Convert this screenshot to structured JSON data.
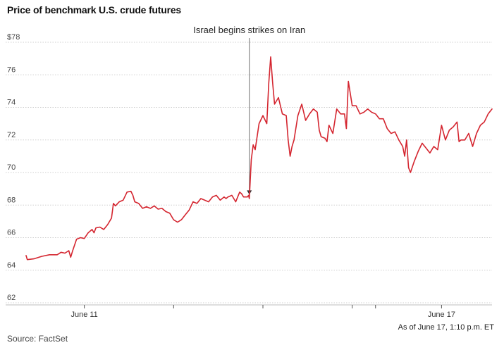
{
  "chart_data": {
    "type": "line",
    "title": "Price of benchmark U.S. crude futures",
    "source": "Source: FactSet",
    "as_of": "As of June 17, 1:10 p.m. ET",
    "y_ticks": [
      "$78",
      "76",
      "74",
      "72",
      "70",
      "68",
      "66",
      "64",
      "62"
    ],
    "y_tick_values": [
      78,
      76,
      74,
      72,
      70,
      68,
      66,
      64,
      62
    ],
    "ylim": [
      62,
      78
    ],
    "grid": true,
    "x_axis": {
      "unit": "trading hours since start of June 10",
      "range": [
        0,
        120
      ]
    },
    "x_ticks": [
      {
        "x": 15,
        "label": "June 11"
      },
      {
        "x": 38,
        "label": ""
      },
      {
        "x": 61,
        "label": ""
      },
      {
        "x": 84,
        "label": ""
      },
      {
        "x": 90,
        "label": ""
      },
      {
        "x": 107,
        "label": "June 17"
      }
    ],
    "annotation": {
      "label": "Israel begins strikes on Iran",
      "x": 57.5,
      "y": 68.6
    },
    "line_color": "#d4252f",
    "series": [
      {
        "values": [
          [
            0,
            64.9
          ],
          [
            0.3,
            64.65
          ],
          [
            2,
            64.7
          ],
          [
            4,
            64.85
          ],
          [
            6,
            64.95
          ],
          [
            8,
            64.95
          ],
          [
            9,
            65.1
          ],
          [
            10,
            65.05
          ],
          [
            11,
            65.2
          ],
          [
            11.5,
            64.8
          ],
          [
            12,
            65.2
          ],
          [
            13,
            65.9
          ],
          [
            14,
            66.0
          ],
          [
            15,
            65.95
          ],
          [
            16,
            66.3
          ],
          [
            17,
            66.5
          ],
          [
            17.5,
            66.3
          ],
          [
            18,
            66.6
          ],
          [
            19,
            66.65
          ],
          [
            20,
            66.5
          ],
          [
            21,
            66.8
          ],
          [
            22,
            67.2
          ],
          [
            22.5,
            68.1
          ],
          [
            23,
            67.95
          ],
          [
            24,
            68.2
          ],
          [
            25,
            68.3
          ],
          [
            26,
            68.8
          ],
          [
            27,
            68.85
          ],
          [
            27.5,
            68.6
          ],
          [
            28,
            68.2
          ],
          [
            29,
            68.1
          ],
          [
            30,
            67.8
          ],
          [
            31,
            67.9
          ],
          [
            32,
            67.8
          ],
          [
            33,
            67.95
          ],
          [
            34,
            67.75
          ],
          [
            35,
            67.8
          ],
          [
            36,
            67.6
          ],
          [
            37,
            67.5
          ],
          [
            38,
            67.1
          ],
          [
            39,
            66.95
          ],
          [
            40,
            67.1
          ],
          [
            41,
            67.4
          ],
          [
            42,
            67.7
          ],
          [
            43,
            68.2
          ],
          [
            44,
            68.1
          ],
          [
            45,
            68.4
          ],
          [
            46,
            68.3
          ],
          [
            47,
            68.2
          ],
          [
            48,
            68.5
          ],
          [
            49,
            68.6
          ],
          [
            50,
            68.3
          ],
          [
            51,
            68.5
          ],
          [
            51.5,
            68.4
          ],
          [
            52,
            68.5
          ],
          [
            53,
            68.6
          ],
          [
            54,
            68.2
          ],
          [
            55,
            68.8
          ],
          [
            55.5,
            68.7
          ],
          [
            56,
            68.5
          ],
          [
            57,
            68.5
          ],
          [
            57.3,
            68.6
          ],
          [
            57.5,
            68.4
          ],
          [
            58,
            70.8
          ],
          [
            58.5,
            71.7
          ],
          [
            59,
            71.4
          ],
          [
            60,
            73.0
          ],
          [
            61,
            73.5
          ],
          [
            62,
            73.0
          ],
          [
            62.5,
            75.5
          ],
          [
            63,
            77.1
          ],
          [
            63.5,
            75.5
          ],
          [
            64,
            74.2
          ],
          [
            65,
            74.6
          ],
          [
            66,
            73.6
          ],
          [
            67,
            73.5
          ],
          [
            67.5,
            72.0
          ],
          [
            68,
            71.0
          ],
          [
            68.5,
            71.6
          ],
          [
            69,
            72.0
          ],
          [
            70,
            73.5
          ],
          [
            71,
            74.2
          ],
          [
            72,
            73.2
          ],
          [
            73,
            73.6
          ],
          [
            74,
            73.9
          ],
          [
            75,
            73.7
          ],
          [
            75.5,
            72.6
          ],
          [
            76,
            72.2
          ],
          [
            77,
            72.1
          ],
          [
            77.5,
            71.9
          ],
          [
            78,
            72.9
          ],
          [
            79,
            72.4
          ],
          [
            80,
            73.9
          ],
          [
            81,
            73.6
          ],
          [
            82,
            73.6
          ],
          [
            82.5,
            72.7
          ],
          [
            83,
            75.6
          ],
          [
            84,
            74.1
          ],
          [
            85,
            74.1
          ],
          [
            86,
            73.6
          ],
          [
            87,
            73.7
          ],
          [
            88,
            73.9
          ],
          [
            89,
            73.7
          ],
          [
            90,
            73.6
          ],
          [
            91,
            73.3
          ],
          [
            92,
            73.3
          ],
          [
            93,
            72.7
          ],
          [
            94,
            72.4
          ],
          [
            95,
            72.5
          ],
          [
            96,
            72.0
          ],
          [
            97,
            71.6
          ],
          [
            97.5,
            71.0
          ],
          [
            98,
            72.0
          ],
          [
            98.5,
            70.3
          ],
          [
            99,
            70.0
          ],
          [
            100,
            70.7
          ],
          [
            101,
            71.3
          ],
          [
            102,
            71.8
          ],
          [
            103,
            71.5
          ],
          [
            104,
            71.2
          ],
          [
            105,
            71.6
          ],
          [
            106,
            71.4
          ],
          [
            107,
            72.9
          ],
          [
            108,
            72.0
          ],
          [
            109,
            72.6
          ],
          [
            110,
            72.8
          ],
          [
            111,
            73.1
          ],
          [
            111.5,
            71.9
          ],
          [
            112,
            72.0
          ],
          [
            113,
            72.0
          ],
          [
            114,
            72.4
          ],
          [
            115,
            71.6
          ],
          [
            116,
            72.4
          ],
          [
            117,
            72.9
          ],
          [
            118,
            73.1
          ],
          [
            119,
            73.6
          ],
          [
            120,
            73.9
          ]
        ]
      }
    ]
  }
}
